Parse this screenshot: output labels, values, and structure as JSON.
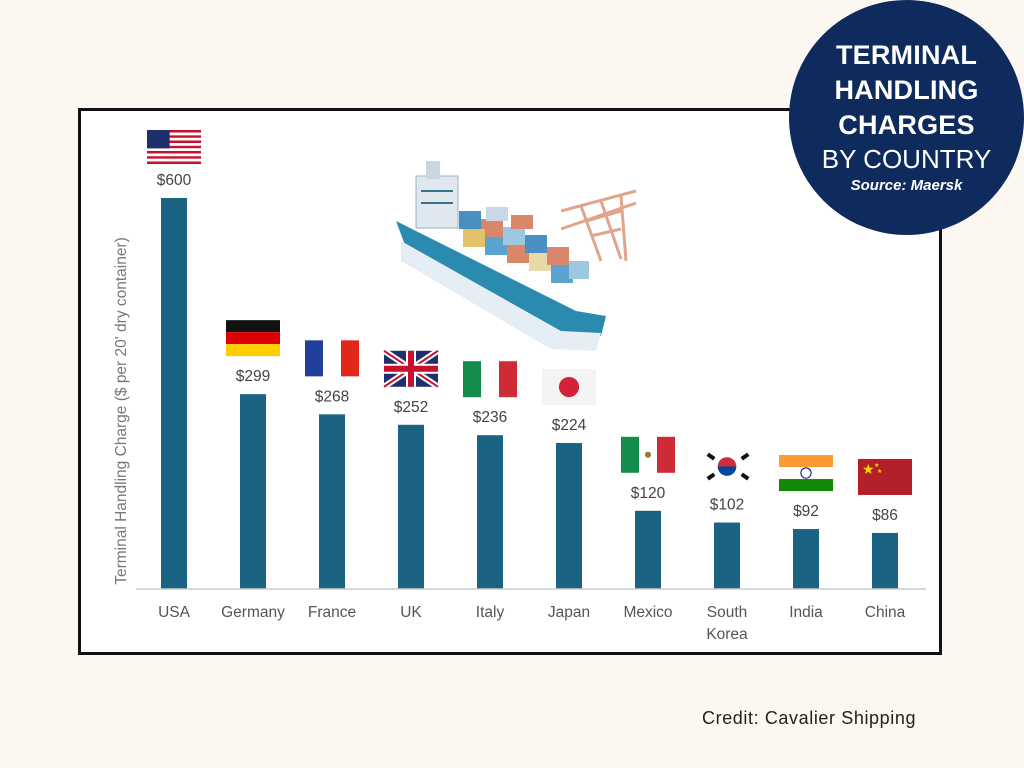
{
  "title_badge": {
    "line1": "TERMINAL",
    "line2": "HANDLING",
    "line3": "CHARGES",
    "line4": "BY COUNTRY",
    "source": "Source: Maersk"
  },
  "credit": "Credit: Cavalier Shipping",
  "colors": {
    "bar": "#1a6383",
    "badge": "#0f2a5c",
    "axis": "#cccccc",
    "label": "#444444"
  },
  "chart_data": {
    "type": "bar",
    "title": "TERMINAL HANDLING CHARGES BY COUNTRY",
    "xlabel": "",
    "ylabel": "Terminal Handling Charge ($ per 20' dry container)",
    "ylim": [
      0,
      600
    ],
    "grid": false,
    "categories": [
      "USA",
      "Germany",
      "France",
      "UK",
      "Italy",
      "Japan",
      "Mexico",
      "South Korea",
      "India",
      "China"
    ],
    "values": [
      600,
      299,
      268,
      252,
      236,
      224,
      120,
      102,
      92,
      86
    ],
    "data_labels": [
      "$600",
      "$299",
      "$268",
      "$252",
      "$236",
      "$224",
      "$120",
      "$102",
      "$92",
      "$86"
    ],
    "flags": [
      "usa-flag",
      "germany-flag",
      "france-flag",
      "uk-flag",
      "italy-flag",
      "japan-flag",
      "mexico-flag",
      "south-korea-flag",
      "india-flag",
      "china-flag"
    ]
  }
}
